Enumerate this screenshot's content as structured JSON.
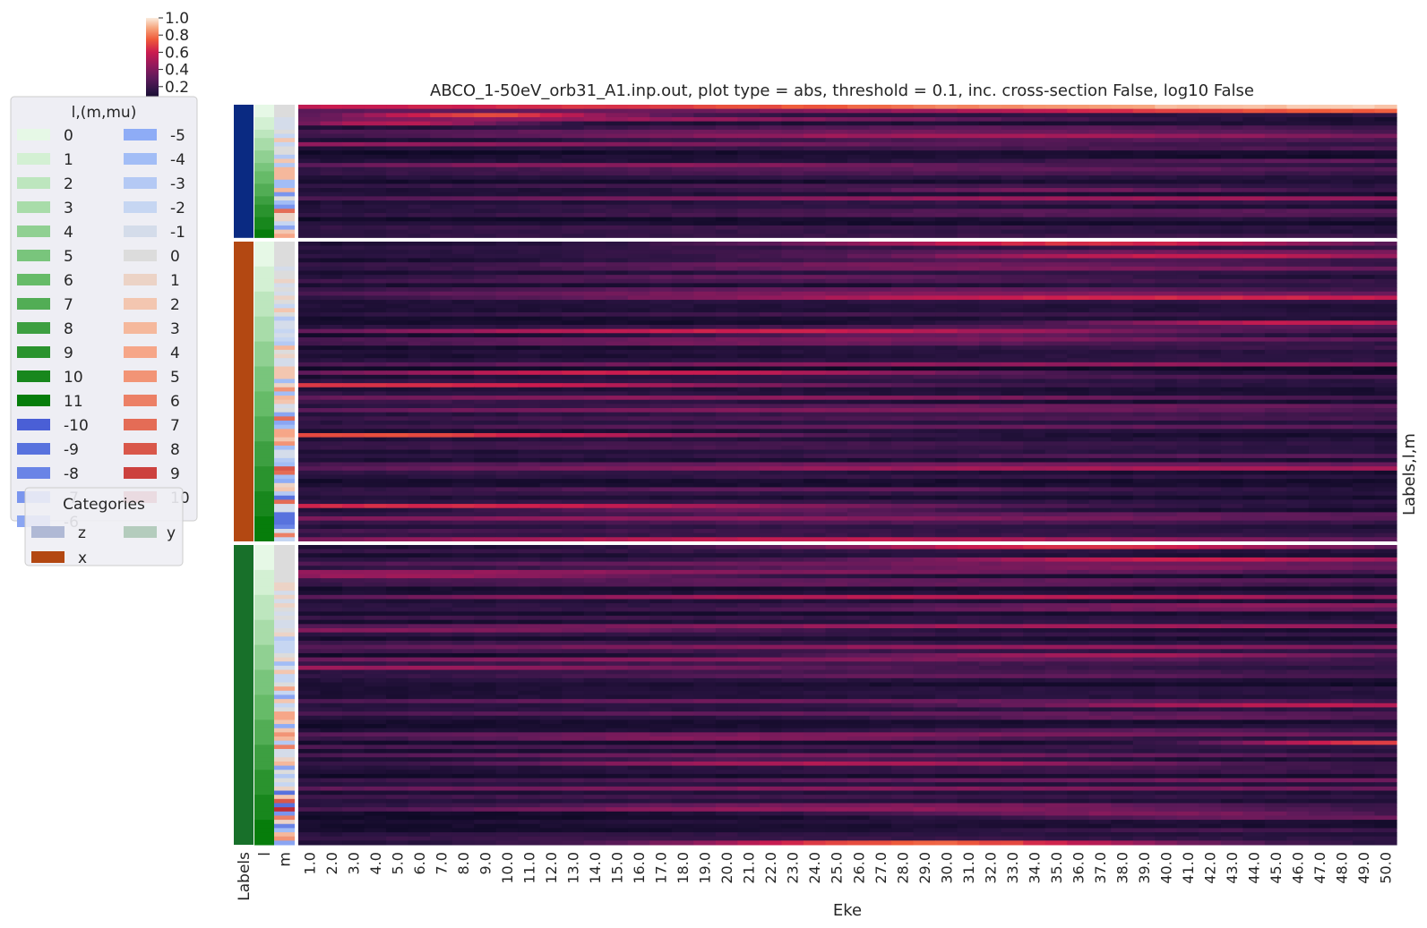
{
  "chart_data": {
    "type": "heatmap",
    "title": "ABCO_1-50eV_orb31_A1.inp.out, plot type = abs, threshold = 0.1, inc. cross-section False, log10 False",
    "xlabel": "Eke",
    "ylabel": "Labels,l,m",
    "x": [
      "1.0",
      "2.0",
      "3.0",
      "4.0",
      "5.0",
      "6.0",
      "7.0",
      "8.0",
      "9.0",
      "10.0",
      "11.0",
      "12.0",
      "13.0",
      "14.0",
      "15.0",
      "16.0",
      "17.0",
      "18.0",
      "19.0",
      "20.0",
      "21.0",
      "22.0",
      "23.0",
      "24.0",
      "25.0",
      "26.0",
      "27.0",
      "28.0",
      "29.0",
      "30.0",
      "31.0",
      "32.0",
      "33.0",
      "34.0",
      "35.0",
      "36.0",
      "37.0",
      "38.0",
      "39.0",
      "40.0",
      "41.0",
      "42.0",
      "43.0",
      "44.0",
      "45.0",
      "46.0",
      "47.0",
      "48.0",
      "49.0",
      "50.0"
    ],
    "row_color_columns": [
      "Labels",
      "l",
      "m"
    ],
    "groups": [
      {
        "label": "z",
        "rows": 32,
        "color": "#0a2a82"
      },
      {
        "label": "x",
        "rows": 72,
        "color": "#b34812"
      },
      {
        "label": "y",
        "rows": 72,
        "color": "#18702a"
      }
    ],
    "colorbar": {
      "min": 0.0,
      "max": 1.0,
      "ticks": [
        "0.0",
        "0.2",
        "0.4",
        "0.6",
        "0.8",
        "1.0"
      ]
    },
    "value_range": [
      0.0,
      1.0
    ],
    "legend_lm": {
      "title": "l,(m,mu)",
      "left_column": [
        {
          "label": "0",
          "color": "#e6f8e6"
        },
        {
          "label": "1",
          "color": "#d3f0d3"
        },
        {
          "label": "2",
          "color": "#bde6be"
        },
        {
          "label": "3",
          "color": "#a8dca9"
        },
        {
          "label": "4",
          "color": "#90d092"
        },
        {
          "label": "5",
          "color": "#79c57c"
        },
        {
          "label": "6",
          "color": "#66bb68"
        },
        {
          "label": "7",
          "color": "#52ad55"
        },
        {
          "label": "8",
          "color": "#3d9f41"
        },
        {
          "label": "9",
          "color": "#2a932e"
        },
        {
          "label": "10",
          "color": "#18871d"
        },
        {
          "label": "11",
          "color": "#067d0b"
        },
        {
          "label": "-10",
          "color": "#4a5fd6"
        },
        {
          "label": "-9",
          "color": "#5872de"
        },
        {
          "label": "-8",
          "color": "#6a84e6"
        },
        {
          "label": "-7",
          "color": "#7a95ee"
        },
        {
          "label": "-6",
          "color": "#8aa5f2"
        }
      ],
      "right_column": [
        {
          "label": "-5",
          "color": "#8eacf6"
        },
        {
          "label": "-4",
          "color": "#a2bdf6"
        },
        {
          "label": "-3",
          "color": "#b4c9f4"
        },
        {
          "label": "-2",
          "color": "#c6d6f2"
        },
        {
          "label": "-1",
          "color": "#d4dcea"
        },
        {
          "label": "0",
          "color": "#dcdcdc"
        },
        {
          "label": "1",
          "color": "#ecd3c6"
        },
        {
          "label": "2",
          "color": "#f3c6b0"
        },
        {
          "label": "3",
          "color": "#f5b89c"
        },
        {
          "label": "4",
          "color": "#f6a688"
        },
        {
          "label": "5",
          "color": "#f29476"
        },
        {
          "label": "6",
          "color": "#ec8066"
        },
        {
          "label": "7",
          "color": "#e46c56"
        },
        {
          "label": "8",
          "color": "#d9574a"
        },
        {
          "label": "9",
          "color": "#cc413e"
        },
        {
          "label": "10",
          "color": "#c02c34"
        }
      ]
    },
    "legend_categories": {
      "title": "Categories",
      "items": [
        {
          "label": "z",
          "color": "#0a2a82"
        },
        {
          "label": "y",
          "color": "#18702a"
        },
        {
          "label": "x",
          "color": "#b34812"
        }
      ]
    }
  }
}
